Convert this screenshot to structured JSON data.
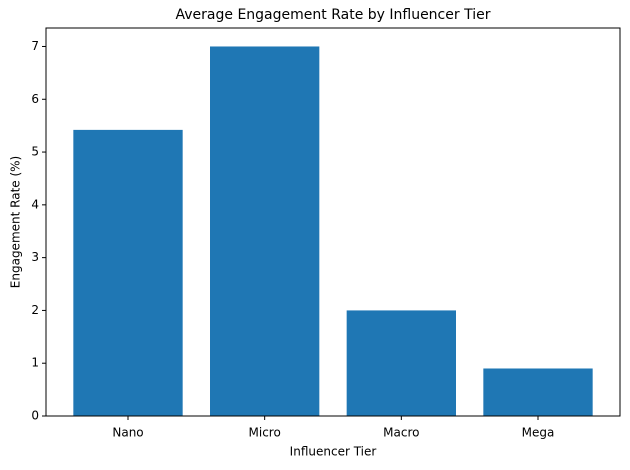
{
  "chart_data": {
    "type": "bar",
    "title": "Average Engagement Rate by Influencer Tier",
    "x_label": "Influencer Tier",
    "y_label": "Engagement Rate (%)",
    "categories": [
      "Nano",
      "Micro",
      "Macro",
      "Mega"
    ],
    "values": [
      5.42,
      7.0,
      2.0,
      0.9
    ],
    "color": "#1f77b4",
    "ylim": [
      0,
      7.35
    ],
    "yticks": [
      0,
      1,
      2,
      3,
      4,
      5,
      6,
      7
    ],
    "grid": false
  }
}
